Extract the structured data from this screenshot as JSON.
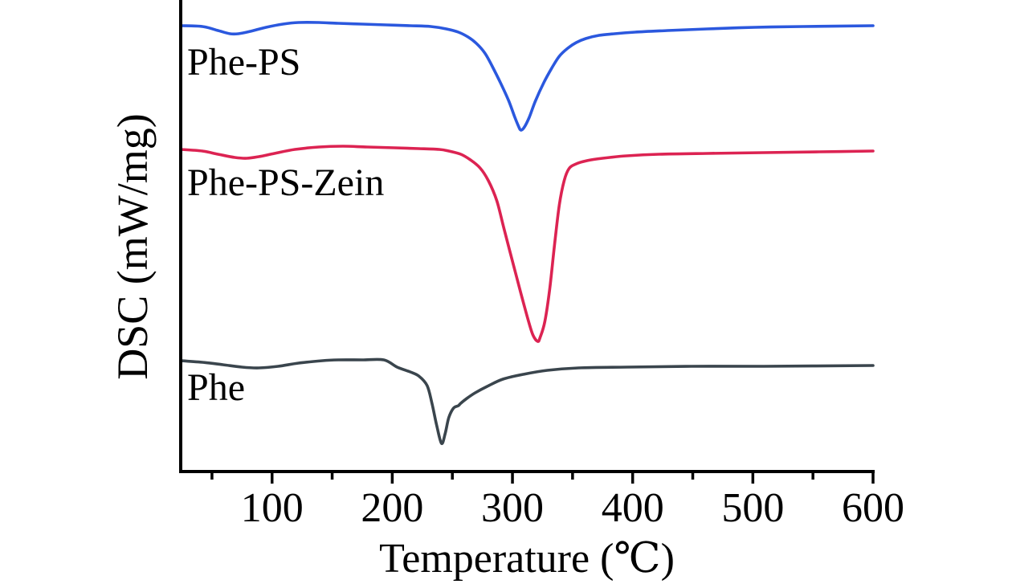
{
  "figure": {
    "background": "#ffffff",
    "text_color": "#000000"
  },
  "chart_data": {
    "type": "line",
    "title": "",
    "xlabel": "Temperature (℃)",
    "ylabel": "DSC (mW/mg)",
    "x_unit": "°C",
    "y_unit": "mW/mg (arbitrary units, stacked curves, no y ticks shown)",
    "xlim": [
      24,
      600
    ],
    "ylim": [
      0,
      5.87
    ],
    "grid": false,
    "legend": "inline-labels",
    "axis_color": "#000000",
    "x_ticks_major": [
      100,
      200,
      300,
      400,
      500,
      600
    ],
    "x_tick_labels": [
      "100",
      "200",
      "300",
      "400",
      "500",
      "600"
    ],
    "x_ticks_minor": [
      50,
      150,
      250,
      350,
      450,
      550
    ],
    "y_ticks": [],
    "series": [
      {
        "name": "Phe-PS",
        "color": "#2b58de",
        "endotherm_peak_c": 307,
        "points": [
          [
            24,
            5.55
          ],
          [
            42,
            5.54
          ],
          [
            55,
            5.49
          ],
          [
            65,
            5.45
          ],
          [
            72,
            5.45
          ],
          [
            82,
            5.48
          ],
          [
            95,
            5.53
          ],
          [
            109,
            5.57
          ],
          [
            122,
            5.59
          ],
          [
            139,
            5.59
          ],
          [
            155,
            5.58
          ],
          [
            175,
            5.57
          ],
          [
            195,
            5.56
          ],
          [
            215,
            5.55
          ],
          [
            232,
            5.54
          ],
          [
            245,
            5.51
          ],
          [
            255,
            5.47
          ],
          [
            263,
            5.41
          ],
          [
            270,
            5.33
          ],
          [
            277,
            5.21
          ],
          [
            283,
            5.05
          ],
          [
            290,
            4.84
          ],
          [
            297,
            4.61
          ],
          [
            302,
            4.41
          ],
          [
            305,
            4.3
          ],
          [
            307,
            4.25
          ],
          [
            310,
            4.29
          ],
          [
            314,
            4.41
          ],
          [
            319,
            4.61
          ],
          [
            326,
            4.84
          ],
          [
            333,
            5.03
          ],
          [
            339,
            5.17
          ],
          [
            346,
            5.27
          ],
          [
            353,
            5.34
          ],
          [
            361,
            5.39
          ],
          [
            372,
            5.43
          ],
          [
            385,
            5.45
          ],
          [
            402,
            5.47
          ],
          [
            429,
            5.49
          ],
          [
            462,
            5.51
          ],
          [
            502,
            5.53
          ],
          [
            542,
            5.54
          ],
          [
            600,
            5.55
          ]
        ]
      },
      {
        "name": "Phe-PS-Zein",
        "color": "#dc2352",
        "endotherm_peak_c": 321,
        "points": [
          [
            24,
            4.01
          ],
          [
            42,
            3.99
          ],
          [
            55,
            3.95
          ],
          [
            69,
            3.91
          ],
          [
            79,
            3.9
          ],
          [
            89,
            3.92
          ],
          [
            102,
            3.96
          ],
          [
            119,
            4.01
          ],
          [
            139,
            4.04
          ],
          [
            159,
            4.05
          ],
          [
            179,
            4.04
          ],
          [
            202,
            4.03
          ],
          [
            222,
            4.02
          ],
          [
            239,
            4.01
          ],
          [
            247,
            3.99
          ],
          [
            257,
            3.95
          ],
          [
            265,
            3.88
          ],
          [
            273,
            3.78
          ],
          [
            280,
            3.62
          ],
          [
            287,
            3.37
          ],
          [
            293,
            3.02
          ],
          [
            300,
            2.62
          ],
          [
            307,
            2.22
          ],
          [
            313,
            1.89
          ],
          [
            317,
            1.7
          ],
          [
            321,
            1.62
          ],
          [
            323,
            1.67
          ],
          [
            327,
            1.87
          ],
          [
            331,
            2.27
          ],
          [
            335,
            2.82
          ],
          [
            339,
            3.32
          ],
          [
            343,
            3.62
          ],
          [
            347,
            3.77
          ],
          [
            353,
            3.83
          ],
          [
            362,
            3.87
          ],
          [
            375,
            3.9
          ],
          [
            395,
            3.93
          ],
          [
            422,
            3.95
          ],
          [
            462,
            3.96
          ],
          [
            509,
            3.97
          ],
          [
            555,
            3.98
          ],
          [
            600,
            3.99
          ]
        ]
      },
      {
        "name": "Phe",
        "color": "#3a454d",
        "endotherm_peak_c": 241,
        "points": [
          [
            24,
            1.38
          ],
          [
            42,
            1.36
          ],
          [
            59,
            1.33
          ],
          [
            75,
            1.3
          ],
          [
            89,
            1.29
          ],
          [
            105,
            1.31
          ],
          [
            122,
            1.35
          ],
          [
            142,
            1.38
          ],
          [
            155,
            1.39
          ],
          [
            175,
            1.39
          ],
          [
            193,
            1.39
          ],
          [
            204,
            1.3
          ],
          [
            215,
            1.24
          ],
          [
            222,
            1.19
          ],
          [
            229,
            1.07
          ],
          [
            233,
            0.85
          ],
          [
            237,
            0.57
          ],
          [
            241,
            0.35
          ],
          [
            244,
            0.47
          ],
          [
            247,
            0.67
          ],
          [
            251,
            0.79
          ],
          [
            255,
            0.82
          ],
          [
            257,
            0.85
          ],
          [
            262,
            0.91
          ],
          [
            269,
            0.98
          ],
          [
            279,
            1.06
          ],
          [
            292,
            1.15
          ],
          [
            309,
            1.21
          ],
          [
            329,
            1.26
          ],
          [
            355,
            1.29
          ],
          [
            395,
            1.3
          ],
          [
            449,
            1.31
          ],
          [
            509,
            1.31
          ],
          [
            600,
            1.32
          ]
        ]
      }
    ]
  }
}
